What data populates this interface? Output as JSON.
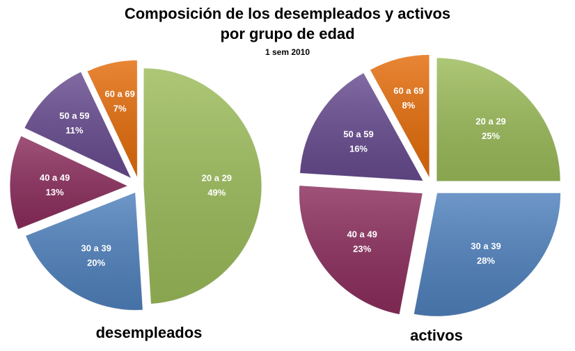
{
  "title_line1": "Composición de los desempleados y activos",
  "title_line2": "por grupo de edad",
  "subtitle": "1 sem 2010",
  "colors": {
    "20 a 29": "#9BBB59",
    "30 a 39": "#4F81BD",
    "40 a 49": "#8B2D5C",
    "50 a 59": "#674B8F",
    "60 a 69": "#E46C0A"
  },
  "chart_data": [
    {
      "type": "pie",
      "caption": "desempleados",
      "categories": [
        "20 a 29",
        "30 a 39",
        "40 a 49",
        "50 a 59",
        "60 a 69"
      ],
      "values": [
        49,
        20,
        13,
        11,
        7
      ],
      "labels": [
        "49%",
        "20%",
        "13%",
        "11%",
        "7%"
      ],
      "exploded": true
    },
    {
      "type": "pie",
      "caption": "activos",
      "categories": [
        "20 a 29",
        "30 a 39",
        "40 a 49",
        "50 a 59",
        "60 a 69"
      ],
      "values": [
        25,
        28,
        23,
        16,
        8
      ],
      "labels": [
        "25%",
        "28%",
        "23%",
        "16%",
        "8%"
      ],
      "exploded": true
    }
  ]
}
